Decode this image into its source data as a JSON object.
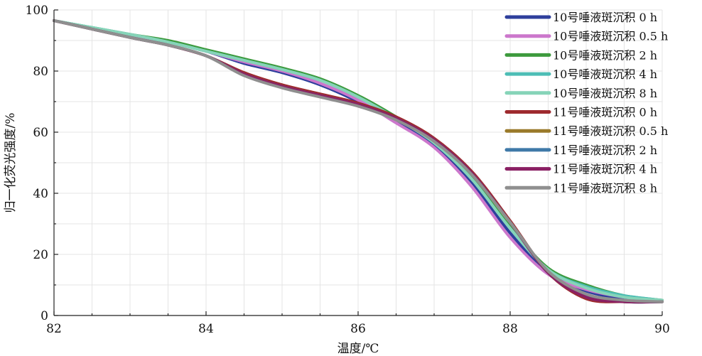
{
  "chart_data": {
    "type": "line",
    "xlabel": "温度/℃",
    "ylabel": "归一化荧光强度/%",
    "xlim": [
      82,
      90
    ],
    "ylim": [
      0,
      100
    ],
    "xticks": [
      82,
      84,
      86,
      88,
      90
    ],
    "yticks": [
      0,
      20,
      40,
      60,
      80,
      100
    ],
    "xtick_labels": [
      "82",
      "84",
      "86",
      "88",
      "90"
    ],
    "ytick_labels": [
      "0",
      "20",
      "40",
      "60",
      "80",
      "100"
    ],
    "grid": true,
    "legend_position": "top-right",
    "series": [
      {
        "name": "10号唾液斑沉积 0 h",
        "color": "#2e3f9c",
        "x": [
          82,
          83,
          83.5,
          84,
          84.5,
          85,
          85.5,
          86,
          86.5,
          87,
          87.5,
          88,
          88.5,
          89,
          89.5,
          90
        ],
        "y": [
          96.5,
          91.5,
          89.5,
          86.5,
          82.5,
          79.5,
          75.5,
          70,
          63.5,
          56,
          43.5,
          27,
          14,
          8,
          5.5,
          4.5
        ]
      },
      {
        "name": "10号唾液斑沉积 0.5 h",
        "color": "#cc77cc",
        "x": [
          82,
          83,
          83.5,
          84,
          84.5,
          85,
          85.5,
          86,
          86.5,
          87,
          87.5,
          88,
          88.5,
          89,
          89.5,
          90
        ],
        "y": [
          96.5,
          91.5,
          89.5,
          86.5,
          83,
          80,
          76,
          70.5,
          63,
          55,
          42,
          25.5,
          13.5,
          8.5,
          6,
          4.5
        ]
      },
      {
        "name": "10号唾液斑沉积 2 h",
        "color": "#3d9a3d",
        "x": [
          82,
          83,
          83.5,
          84,
          84.5,
          85,
          85.5,
          86,
          86.5,
          87,
          87.5,
          88,
          88.5,
          89,
          89.5,
          90
        ],
        "y": [
          96.5,
          92,
          90,
          87,
          84,
          81,
          77.5,
          72,
          65,
          57,
          45,
          29,
          15.5,
          10,
          6.5,
          5
        ]
      },
      {
        "name": "10号唾液斑沉积 4 h",
        "color": "#4dbdb5",
        "x": [
          82,
          83,
          83.5,
          84,
          84.5,
          85,
          85.5,
          86,
          86.5,
          87,
          87.5,
          88,
          88.5,
          89,
          89.5,
          90
        ],
        "y": [
          96.5,
          92,
          89.5,
          86.5,
          83.5,
          80.5,
          77,
          71.5,
          64.5,
          56.5,
          44.5,
          28.5,
          15,
          9.5,
          6.5,
          5
        ]
      },
      {
        "name": "10号唾液斑沉积 8 h",
        "color": "#86d4b8",
        "x": [
          82,
          83,
          83.5,
          84,
          84.5,
          85,
          85.5,
          86,
          86.5,
          87,
          87.5,
          88,
          88.5,
          89,
          89.5,
          90
        ],
        "y": [
          96.5,
          92,
          89.5,
          86.5,
          83.5,
          80.5,
          77,
          71.5,
          64.5,
          56.5,
          44.5,
          28.5,
          15,
          9,
          6,
          5
        ]
      },
      {
        "name": "11号唾液斑沉积 0 h",
        "color": "#9e2a2e",
        "x": [
          82,
          83,
          83.5,
          84,
          84.5,
          85,
          85.5,
          86,
          86.5,
          87,
          87.5,
          88,
          88.5,
          89,
          89.5,
          90
        ],
        "y": [
          96.5,
          91,
          88.5,
          85,
          79.5,
          75.5,
          72.5,
          69.5,
          65,
          58,
          47,
          31,
          14,
          5.5,
          4.5,
          4.5
        ]
      },
      {
        "name": "11号唾液斑沉积 0.5 h",
        "color": "#9a7a2a",
        "x": [
          82,
          83,
          83.5,
          84,
          84.5,
          85,
          85.5,
          86,
          86.5,
          87,
          87.5,
          88,
          88.5,
          89,
          89.5,
          90
        ],
        "y": [
          96.5,
          91,
          88.5,
          85,
          79,
          75,
          72,
          69,
          64.5,
          57.5,
          46.5,
          30.5,
          14,
          6,
          4.5,
          4.5
        ]
      },
      {
        "name": "11号唾液斑沉积 2 h",
        "color": "#3f79a8",
        "x": [
          82,
          83,
          83.5,
          84,
          84.5,
          85,
          85.5,
          86,
          86.5,
          87,
          87.5,
          88,
          88.5,
          89,
          89.5,
          90
        ],
        "y": [
          96.5,
          91,
          88.5,
          85,
          79,
          75,
          72,
          69,
          64.5,
          57.5,
          46.5,
          30.5,
          14,
          6.5,
          4.5,
          4.5
        ]
      },
      {
        "name": "11号唾液斑沉积 4 h",
        "color": "#8a1f63",
        "x": [
          82,
          83,
          83.5,
          84,
          84.5,
          85,
          85.5,
          86,
          86.5,
          87,
          87.5,
          88,
          88.5,
          89,
          89.5,
          90
        ],
        "y": [
          96.5,
          91,
          88.5,
          85,
          79,
          75,
          72,
          69,
          64.5,
          57.5,
          46.5,
          30.5,
          14,
          6,
          4.5,
          4.5
        ]
      },
      {
        "name": "11号唾液斑沉积 8 h",
        "color": "#8f8f8f",
        "x": [
          82,
          83,
          83.5,
          84,
          84.5,
          85,
          85.5,
          86,
          86.5,
          87,
          87.5,
          88,
          88.5,
          89,
          89.5,
          90
        ],
        "y": [
          96.5,
          91,
          88.5,
          85,
          78.5,
          74.5,
          71.5,
          68.5,
          64,
          57,
          46,
          30.5,
          14.5,
          7,
          5,
          4.5
        ]
      }
    ]
  }
}
